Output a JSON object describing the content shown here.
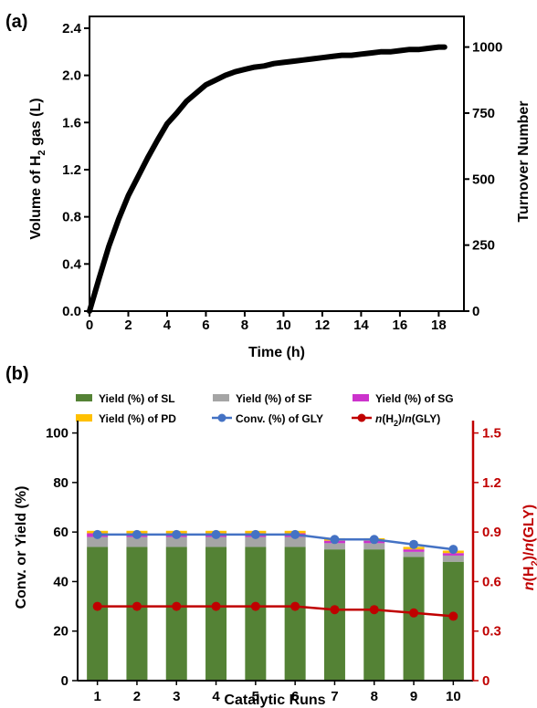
{
  "panel_a": {
    "label": "(a)",
    "chart_data": {
      "type": "line",
      "xlabel": "Time (h)",
      "ylabel_main": "Volume of H",
      "ylabel_sub": "2",
      "ylabel_tail": " gas (L)",
      "y2label": "Turnover Number",
      "xlim": [
        0,
        19.3
      ],
      "ylim": [
        0,
        2.5
      ],
      "y2lim": [
        0,
        1116
      ],
      "xticks": [
        0,
        2,
        4,
        6,
        8,
        10,
        12,
        14,
        16,
        18
      ],
      "xtick_labels": [
        "0",
        "2",
        "4",
        "6",
        "8",
        "10",
        "12",
        "14",
        "16",
        "18"
      ],
      "yticks": [
        0,
        0.4,
        0.8,
        1.2,
        1.6,
        2.0,
        2.4
      ],
      "ytick_labels": [
        "0.0",
        "0.4",
        "0.8",
        "1.2",
        "1.6",
        "2.0",
        "2.4"
      ],
      "y2ticks": [
        0,
        250,
        500,
        750,
        1000
      ],
      "y2tick_labels": [
        "0",
        "250",
        "500",
        "750",
        "1000"
      ],
      "line_color": "#000000",
      "series": [
        {
          "x": [
            0,
            0.5,
            1,
            1.5,
            2,
            2.5,
            3,
            3.5,
            4,
            4.5,
            5,
            5.5,
            6,
            6.5,
            7,
            7.5,
            8,
            8.5,
            9,
            9.5,
            10,
            10.5,
            11,
            11.5,
            12,
            12.5,
            13,
            13.5,
            14,
            14.5,
            15,
            15.5,
            16,
            16.5,
            17,
            17.5,
            18,
            18.3
          ],
          "y": [
            0,
            0.28,
            0.55,
            0.78,
            0.98,
            1.14,
            1.3,
            1.45,
            1.59,
            1.68,
            1.78,
            1.85,
            1.92,
            1.96,
            2.0,
            2.03,
            2.05,
            2.07,
            2.08,
            2.1,
            2.11,
            2.12,
            2.13,
            2.14,
            2.15,
            2.16,
            2.17,
            2.17,
            2.18,
            2.19,
            2.2,
            2.2,
            2.21,
            2.22,
            2.22,
            2.23,
            2.24,
            2.24
          ]
        }
      ]
    }
  },
  "panel_b": {
    "label": "(b)",
    "chart_data": {
      "type": "bar",
      "xlabel": "Catalytic Runs",
      "ylabel": "Conv. or Yield (%)",
      "y2label": "n(H₂)/n(GLY)",
      "categories": [
        "1",
        "2",
        "3",
        "4",
        "5",
        "6",
        "7",
        "8",
        "9",
        "10"
      ],
      "ylim": [
        0,
        105
      ],
      "yticks": [
        0,
        20,
        40,
        60,
        80,
        100
      ],
      "y2lim": [
        0,
        1.5
      ],
      "y2ticks": [
        "0",
        "0.3",
        "0.6",
        "0.9",
        "1.2",
        "1.5"
      ],
      "axis2_color": "#c00000",
      "stacked_series": [
        {
          "name": "Yield (%) of SL",
          "color": "#548235",
          "values": [
            54,
            54,
            54,
            54,
            54,
            54,
            53,
            53,
            50,
            48
          ]
        },
        {
          "name": "Yield (%) of SF",
          "color": "#a5a5a5",
          "values": [
            4,
            4,
            4,
            4,
            4,
            4,
            2.5,
            2.5,
            2,
            2.5
          ]
        },
        {
          "name": "Yield (%) of SG",
          "color": "#cc33cc",
          "values": [
            1.5,
            1.5,
            1.5,
            1.5,
            1.5,
            1.5,
            1,
            1,
            1,
            1
          ]
        },
        {
          "name": "Yield (%) of PD",
          "color": "#ffc000",
          "values": [
            1,
            1,
            1,
            1,
            1,
            1,
            1,
            1,
            1,
            1
          ]
        }
      ],
      "line_series": [
        {
          "name": "Conv. (%) of GLY",
          "color": "#4472c4",
          "axis": "left",
          "values": [
            59,
            59,
            59,
            59,
            59,
            59,
            57,
            57,
            55,
            53
          ]
        },
        {
          "name": "n(H₂)/n(GLY)",
          "color": "#c00000",
          "axis": "right",
          "values": [
            0.45,
            0.45,
            0.45,
            0.45,
            0.45,
            0.45,
            0.43,
            0.43,
            0.41,
            0.39
          ]
        }
      ],
      "legend": [
        {
          "label": "Yield (%) of SL",
          "kind": "bar",
          "color": "#548235"
        },
        {
          "label": "Yield (%) of SF",
          "kind": "bar",
          "color": "#a5a5a5"
        },
        {
          "label": "Yield (%) of SG",
          "kind": "bar",
          "color": "#cc33cc"
        },
        {
          "label": "Yield (%) of PD",
          "kind": "bar",
          "color": "#ffc000"
        },
        {
          "label": "Conv. (%) of GLY",
          "kind": "line",
          "color": "#4472c4"
        },
        {
          "label": "n(H₂)/n(GLY)",
          "kind": "line",
          "color": "#c00000"
        }
      ]
    }
  }
}
